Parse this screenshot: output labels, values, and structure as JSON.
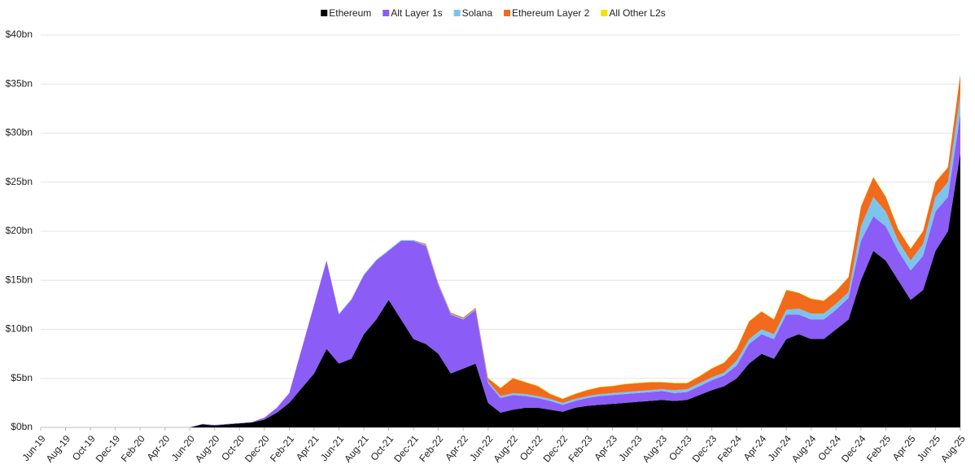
{
  "chart_data": {
    "type": "stacked_area",
    "categories": [
      "Jun-19",
      null,
      "Aug-19",
      null,
      "Oct-19",
      null,
      "Dec-19",
      null,
      "Feb-20",
      null,
      "Apr-20",
      null,
      "Jun-20",
      null,
      "Aug-20",
      null,
      "Oct-20",
      null,
      "Dec-20",
      null,
      "Feb-21",
      null,
      "Apr-21",
      null,
      "Jun-21",
      null,
      "Aug-21",
      null,
      "Oct-21",
      null,
      "Dec-21",
      null,
      "Feb-22",
      null,
      "Apr-22",
      null,
      "Jun-22",
      null,
      "Aug-22",
      null,
      "Oct-22",
      null,
      "Dec-22",
      null,
      "Feb-23",
      null,
      "Apr-23",
      null,
      "Jun-23",
      null,
      "Aug-23",
      null,
      "Oct-23",
      null,
      "Dec-23",
      null,
      "Feb-24",
      null,
      "Apr-24",
      null,
      "Jun-24",
      null,
      "Aug-24",
      null,
      "Oct-24",
      null,
      "Dec-24",
      null,
      "Feb-25",
      null,
      "Apr-25",
      null,
      "Jun-25",
      null,
      "Aug-25"
    ],
    "series": [
      {
        "name": "Ethereum",
        "color": "#000000",
        "values": [
          0,
          0,
          0,
          0,
          0,
          0,
          0,
          0,
          0,
          0,
          0,
          0,
          0,
          0.3,
          0.2,
          0.3,
          0.4,
          0.5,
          0.8,
          1.5,
          2.5,
          4,
          5.5,
          8,
          6.5,
          7,
          9.5,
          11,
          13,
          11,
          9,
          8.5,
          7.5,
          5.5,
          6,
          6.5,
          2.5,
          1.5,
          1.8,
          2,
          2,
          1.8,
          1.6,
          2,
          2.2,
          2.3,
          2.4,
          2.5,
          2.6,
          2.7,
          2.8,
          2.7,
          2.8,
          3.3,
          3.8,
          4.2,
          5,
          6.5,
          7.5,
          7,
          9,
          9.5,
          9,
          9,
          10,
          11,
          15,
          18,
          17,
          15,
          13,
          14,
          18,
          20,
          28
        ]
      },
      {
        "name": "Alt Layer 1s",
        "color": "#8b5cf6",
        "values": [
          0,
          0,
          0,
          0,
          0,
          0,
          0,
          0,
          0,
          0,
          0,
          0,
          0,
          0.05,
          0.05,
          0.05,
          0.05,
          0.05,
          0.2,
          0.5,
          1,
          4,
          7,
          9,
          5,
          6,
          6,
          6,
          5,
          8,
          10,
          10,
          7,
          6,
          5,
          5.5,
          2,
          1.5,
          1.5,
          1.2,
          1,
          0.9,
          0.7,
          0.7,
          0.8,
          0.9,
          0.9,
          0.9,
          0.9,
          0.9,
          0.9,
          0.8,
          0.8,
          0.9,
          1,
          1.1,
          1.3,
          2,
          2,
          2,
          2.5,
          2,
          2,
          2,
          2,
          2.2,
          4,
          3.5,
          3.5,
          3,
          3,
          3.5,
          4,
          3.5,
          4
        ]
      },
      {
        "name": "Solana",
        "color": "#7cc4ee",
        "values": [
          0,
          0,
          0,
          0,
          0,
          0,
          0,
          0,
          0,
          0,
          0,
          0,
          0,
          0,
          0,
          0,
          0,
          0,
          0,
          0,
          0,
          0,
          0,
          0,
          0.1,
          0.1,
          0.1,
          0.1,
          0.1,
          0.1,
          0.1,
          0.1,
          0.1,
          0.1,
          0.1,
          0.1,
          0.2,
          0.2,
          0.2,
          0.2,
          0.2,
          0.2,
          0.2,
          0.2,
          0.2,
          0.2,
          0.2,
          0.2,
          0.2,
          0.2,
          0.2,
          0.3,
          0.3,
          0.3,
          0.3,
          0.3,
          0.5,
          0.5,
          0.5,
          0.5,
          0.5,
          0.6,
          0.6,
          0.6,
          0.6,
          0.6,
          1.5,
          2,
          1.5,
          1,
          1,
          1.2,
          1.5,
          1.5,
          2
        ]
      },
      {
        "name": "Ethereum Layer 2",
        "color": "#f26a1b",
        "values": [
          0,
          0,
          0,
          0,
          0,
          0,
          0,
          0,
          0,
          0,
          0,
          0,
          0,
          0,
          0,
          0,
          0,
          0,
          0,
          0,
          0,
          0,
          0,
          0,
          0,
          0,
          0,
          0,
          0,
          0,
          0,
          0.1,
          0.1,
          0.1,
          0.1,
          0.1,
          0.3,
          0.8,
          1.5,
          1.2,
          1,
          0.5,
          0.4,
          0.5,
          0.6,
          0.7,
          0.7,
          0.8,
          0.8,
          0.8,
          0.7,
          0.7,
          0.6,
          0.7,
          0.9,
          1,
          1.2,
          1.8,
          1.8,
          1.5,
          2,
          1.6,
          1.5,
          1.3,
          1.3,
          1.5,
          2,
          2,
          1.5,
          1.2,
          1.2,
          1.3,
          1.5,
          1.5,
          2
        ]
      },
      {
        "name": "All Other L2s",
        "color": "#f5e000",
        "values": [
          0,
          0,
          0,
          0,
          0,
          0,
          0,
          0,
          0,
          0,
          0,
          0,
          0,
          0,
          0,
          0,
          0,
          0,
          0,
          0,
          0,
          0,
          0,
          0,
          0,
          0,
          0,
          0,
          0,
          0,
          0,
          0,
          0,
          0,
          0,
          0,
          0.05,
          0.05,
          0.05,
          0.05,
          0.05,
          0.05,
          0.05,
          0.05,
          0.05,
          0.05,
          0.05,
          0.05,
          0.05,
          0.05,
          0.05,
          0.05,
          0.05,
          0.05,
          0.05,
          0.05,
          0.05,
          0.05,
          0.05,
          0.05,
          0.05,
          0.05,
          0.05,
          0.05,
          0.05,
          0.05,
          0.05,
          0.05,
          0.05,
          0.05,
          0.05,
          0.05,
          0.05,
          0.05,
          0.05
        ]
      }
    ],
    "ylim": [
      0,
      40
    ],
    "yticks": [
      {
        "value": 0,
        "label": "$0bn"
      },
      {
        "value": 5,
        "label": "$5bn"
      },
      {
        "value": 10,
        "label": "$10bn"
      },
      {
        "value": 15,
        "label": "$15bn"
      },
      {
        "value": 20,
        "label": "$20bn"
      },
      {
        "value": 25,
        "label": "$25bn"
      },
      {
        "value": 30,
        "label": "$30bn"
      },
      {
        "value": 35,
        "label": "$35bn"
      },
      {
        "value": 40,
        "label": "$40bn"
      }
    ],
    "grid": true,
    "legend": "top"
  }
}
